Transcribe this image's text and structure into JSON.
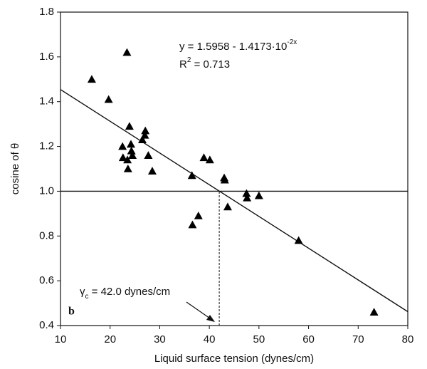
{
  "chart_data": {
    "type": "scatter",
    "xlabel": "Liquid surface tension (dynes/cm)",
    "ylabel": "cosine of θ",
    "equation": [
      "y = 1.5958 - 1.4173·10",
      "-2x"
    ],
    "r2": [
      "R",
      "2",
      " = 0.713"
    ],
    "annotation": [
      "γ",
      "c",
      " = 42.0 dynes/cm"
    ],
    "panel": "b",
    "color": "#000000",
    "x": [
      16.3,
      19.7,
      23.4,
      23.9,
      22.5,
      22.6,
      23.5,
      23.6,
      24.2,
      24.3,
      24.5,
      26.5,
      27.1,
      27.0,
      27.7,
      28.5,
      36.5,
      38.9,
      40.1,
      36.6,
      37.8,
      43.0,
      43.1,
      43.7,
      47.5,
      47.6,
      50.0,
      58.0,
      73.2
    ],
    "values": [
      1.5,
      1.41,
      1.62,
      1.29,
      1.2,
      1.15,
      1.14,
      1.1,
      1.21,
      1.18,
      1.16,
      1.23,
      1.27,
      1.25,
      1.16,
      1.09,
      1.07,
      1.15,
      1.14,
      0.85,
      0.89,
      1.06,
      1.05,
      0.93,
      0.99,
      0.97,
      0.98,
      0.78,
      0.46
    ],
    "lines": [
      {
        "x": [
          10,
          80
        ],
        "values": [
          1.4541,
          0.462
        ]
      },
      {
        "x": [
          10,
          80
        ],
        "values": [
          1,
          1
        ]
      },
      {
        "x": [
          42.0,
          42.0
        ],
        "values": [
          0.4,
          1
        ],
        "dashed": true
      }
    ],
    "xlim": [
      10,
      80
    ],
    "xticks": [
      10,
      20,
      30,
      40,
      50,
      60,
      70,
      80
    ],
    "ylim": [
      0.4,
      1.8
    ],
    "yticks": [
      0.4,
      0.6,
      0.8,
      {
        "value": 1,
        "label": "1.0"
      },
      1.2,
      1.4,
      1.6,
      1.8
    ]
  }
}
